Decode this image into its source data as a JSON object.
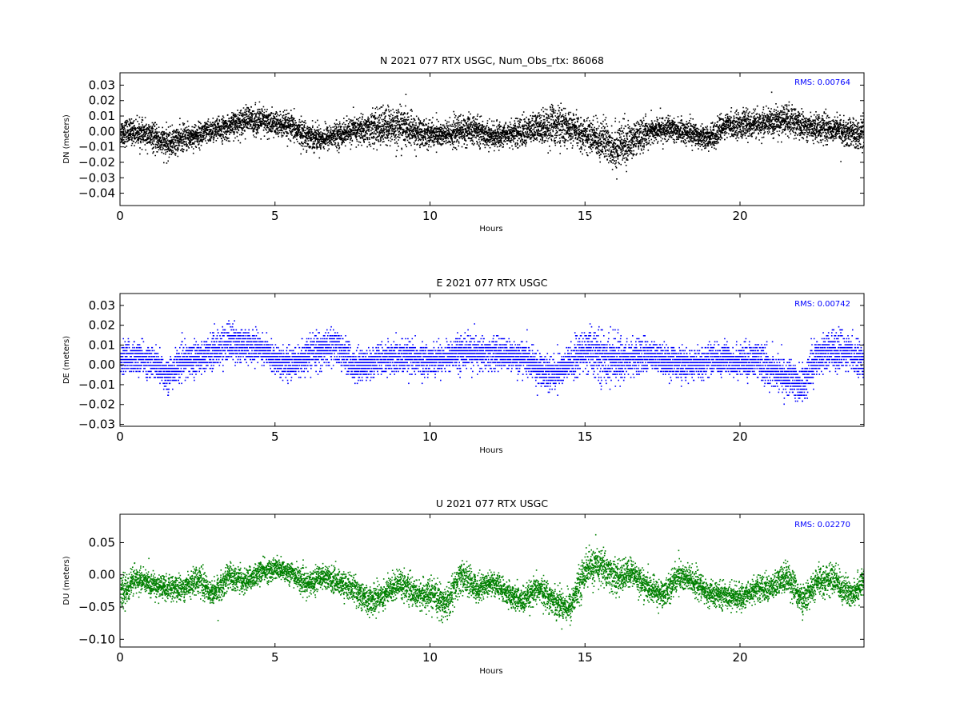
{
  "chart_data": [
    {
      "type": "scatter",
      "title": "N 2021 077 RTX  USGC, Num_Obs_rtx: 86068",
      "xlabel": "Hours",
      "ylabel": "DN (meters)",
      "rms_label": "RMS:  0.00764",
      "color": "#000000",
      "xlim": [
        0,
        24
      ],
      "ylim": [
        -0.048,
        0.038
      ],
      "xticks": [
        0,
        5,
        10,
        15,
        20
      ],
      "yticks": [
        -0.04,
        -0.03,
        -0.02,
        -0.01,
        0.0,
        0.01,
        0.02,
        0.03
      ],
      "ytick_labels": [
        "−0.04",
        "−0.03",
        "−0.02",
        "−0.01",
        "0.00",
        "0.01",
        "0.02",
        "0.03"
      ],
      "grid": false,
      "series": [
        {
          "x": [
            0,
            0.5,
            1,
            1.5,
            2,
            2.5,
            3,
            3.5,
            4,
            4.5,
            5,
            5.5,
            6,
            6.5,
            7,
            7.5,
            8,
            8.5,
            9,
            9.5,
            10,
            10.5,
            11,
            11.5,
            12,
            12.5,
            13,
            13.5,
            14,
            14.5,
            15,
            15.5,
            16,
            16.5,
            17,
            17.5,
            18,
            18.5,
            19,
            19.5,
            20,
            20.5,
            21,
            21.5,
            22,
            22.5,
            23,
            23.5,
            24
          ],
          "center": [
            0.0,
            0.0,
            -0.003,
            -0.008,
            -0.004,
            -0.002,
            0.001,
            0.003,
            0.008,
            0.007,
            0.005,
            0.003,
            -0.002,
            -0.004,
            -0.002,
            0.001,
            0.002,
            0.003,
            0.004,
            0.0,
            -0.001,
            -0.002,
            0.001,
            0.001,
            -0.003,
            -0.001,
            0.0,
            0.003,
            0.005,
            0.002,
            -0.002,
            -0.005,
            -0.01,
            -0.006,
            0.0,
            0.002,
            0.001,
            -0.001,
            -0.004,
            0.004,
            0.005,
            0.005,
            0.006,
            0.008,
            0.004,
            0.003,
            0.002,
            0.0,
            -0.002
          ],
          "spread": [
            0.01,
            0.009,
            0.01,
            0.011,
            0.01,
            0.009,
            0.009,
            0.009,
            0.01,
            0.011,
            0.01,
            0.01,
            0.01,
            0.009,
            0.009,
            0.01,
            0.012,
            0.015,
            0.015,
            0.012,
            0.01,
            0.01,
            0.012,
            0.01,
            0.009,
            0.009,
            0.011,
            0.012,
            0.016,
            0.012,
            0.012,
            0.015,
            0.018,
            0.014,
            0.01,
            0.009,
            0.009,
            0.009,
            0.009,
            0.009,
            0.01,
            0.01,
            0.011,
            0.012,
            0.01,
            0.01,
            0.01,
            0.01,
            0.012
          ]
        }
      ]
    },
    {
      "type": "scatter",
      "title": "E 2021 077 RTX  USGC",
      "xlabel": "Hours",
      "ylabel": "DE (meters)",
      "rms_label": "RMS:  0.00742",
      "color": "#0000ff",
      "xlim": [
        0,
        24
      ],
      "ylim": [
        -0.031,
        0.036
      ],
      "xticks": [
        0,
        5,
        10,
        15,
        20
      ],
      "yticks": [
        -0.03,
        -0.02,
        -0.01,
        0.0,
        0.01,
        0.02,
        0.03
      ],
      "ytick_labels": [
        "−0.03",
        "−0.02",
        "−0.01",
        "0.00",
        "0.01",
        "0.02",
        "0.03"
      ],
      "grid": false,
      "quantized": true,
      "series": [
        {
          "x": [
            0,
            0.5,
            1,
            1.5,
            2,
            2.5,
            3,
            3.5,
            4,
            4.5,
            5,
            5.5,
            6,
            6.5,
            7,
            7.5,
            8,
            8.5,
            9,
            9.5,
            10,
            10.5,
            11,
            11.5,
            12,
            12.5,
            13,
            13.5,
            14,
            14.5,
            15,
            15.5,
            16,
            16.5,
            17,
            17.5,
            18,
            18.5,
            19,
            19.5,
            20,
            20.5,
            21,
            21.5,
            22,
            22.5,
            23,
            23.5,
            24
          ],
          "center": [
            0.004,
            0.004,
            0.002,
            -0.005,
            0.002,
            0.004,
            0.007,
            0.012,
            0.01,
            0.009,
            0.003,
            0.0,
            0.005,
            0.008,
            0.01,
            0.0,
            0.001,
            0.003,
            0.004,
            0.003,
            0.003,
            0.004,
            0.007,
            0.006,
            0.006,
            0.005,
            0.004,
            -0.002,
            -0.004,
            0.001,
            0.008,
            0.004,
            0.003,
            0.004,
            0.005,
            0.003,
            0.001,
            0.0,
            0.003,
            0.003,
            0.002,
            0.003,
            -0.002,
            -0.006,
            -0.01,
            0.006,
            0.008,
            0.006,
            0.003
          ],
          "spread": [
            0.01,
            0.009,
            0.009,
            0.01,
            0.009,
            0.009,
            0.01,
            0.011,
            0.01,
            0.009,
            0.008,
            0.008,
            0.009,
            0.01,
            0.01,
            0.009,
            0.009,
            0.009,
            0.01,
            0.009,
            0.008,
            0.008,
            0.01,
            0.01,
            0.009,
            0.009,
            0.009,
            0.01,
            0.01,
            0.01,
            0.012,
            0.014,
            0.013,
            0.01,
            0.009,
            0.009,
            0.009,
            0.008,
            0.009,
            0.009,
            0.009,
            0.01,
            0.01,
            0.01,
            0.011,
            0.011,
            0.011,
            0.01,
            0.01
          ]
        }
      ]
    },
    {
      "type": "scatter",
      "title": "U 2021 077 RTX  USGC",
      "xlabel": "Hours",
      "ylabel": "DU (meters)",
      "rms_label": "RMS:  0.02270",
      "color": "#008000",
      "xlim": [
        0,
        24
      ],
      "ylim": [
        -0.112,
        0.094
      ],
      "xticks": [
        0,
        5,
        10,
        15,
        20
      ],
      "yticks": [
        -0.1,
        -0.05,
        0.0,
        0.05
      ],
      "ytick_labels": [
        "−0.10",
        "−0.05",
        "0.00",
        "0.05"
      ],
      "grid": false,
      "series": [
        {
          "x": [
            0,
            0.5,
            1,
            1.5,
            2,
            2.5,
            3,
            3.5,
            4,
            4.5,
            5,
            5.5,
            6,
            6.5,
            7,
            7.5,
            8,
            8.5,
            9,
            9.5,
            10,
            10.5,
            11,
            11.5,
            12,
            12.5,
            13,
            13.5,
            14,
            14.5,
            15,
            15.5,
            16,
            16.5,
            17,
            17.5,
            18,
            18.5,
            19,
            19.5,
            20,
            20.5,
            21,
            21.5,
            22,
            22.5,
            23,
            23.5,
            24
          ],
          "center": [
            -0.03,
            -0.005,
            -0.015,
            -0.02,
            -0.02,
            -0.005,
            -0.03,
            0.0,
            -0.01,
            0.005,
            0.01,
            0.005,
            -0.015,
            0.0,
            -0.01,
            -0.02,
            -0.04,
            -0.03,
            -0.01,
            -0.03,
            -0.03,
            -0.045,
            0.0,
            -0.02,
            -0.01,
            -0.03,
            -0.04,
            -0.02,
            -0.04,
            -0.05,
            0.01,
            0.015,
            -0.005,
            0.005,
            -0.02,
            -0.03,
            0.0,
            -0.01,
            -0.03,
            -0.03,
            -0.035,
            -0.02,
            -0.02,
            0.0,
            -0.04,
            -0.01,
            -0.005,
            -0.03,
            -0.01
          ],
          "spread": [
            0.03,
            0.022,
            0.022,
            0.022,
            0.022,
            0.024,
            0.024,
            0.024,
            0.022,
            0.02,
            0.02,
            0.02,
            0.022,
            0.022,
            0.022,
            0.024,
            0.026,
            0.026,
            0.024,
            0.024,
            0.026,
            0.03,
            0.03,
            0.024,
            0.022,
            0.022,
            0.024,
            0.024,
            0.026,
            0.028,
            0.032,
            0.034,
            0.03,
            0.026,
            0.024,
            0.024,
            0.028,
            0.026,
            0.022,
            0.022,
            0.022,
            0.022,
            0.024,
            0.028,
            0.024,
            0.026,
            0.028,
            0.026,
            0.026
          ]
        }
      ]
    }
  ]
}
